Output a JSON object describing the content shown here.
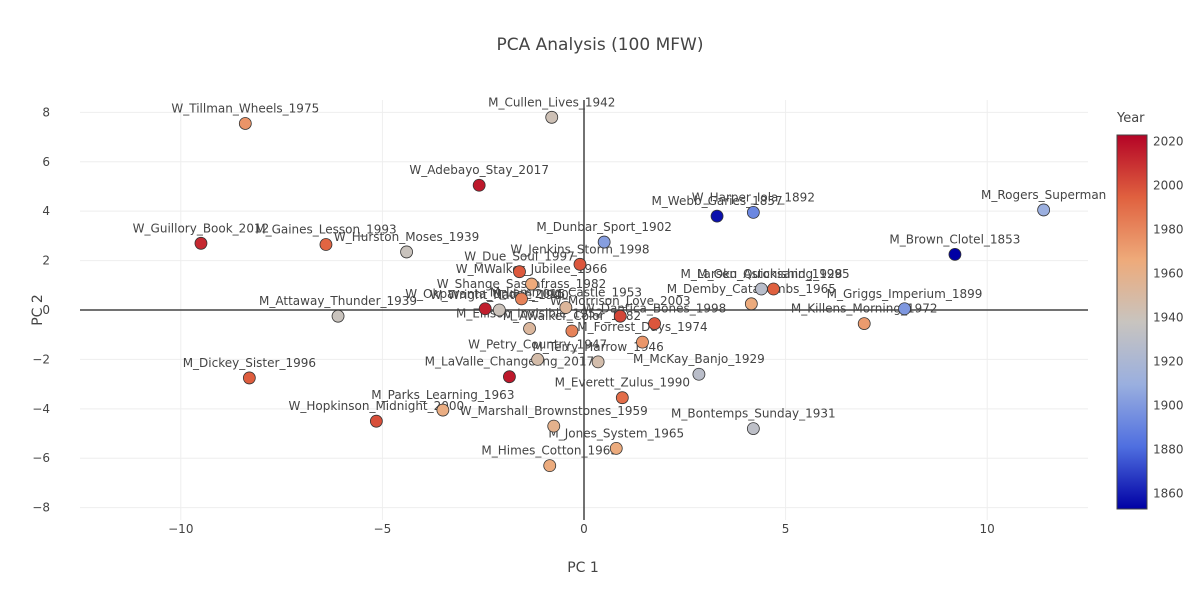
{
  "chart_data": {
    "type": "scatter",
    "title": "PCA Analysis (100 MFW)",
    "xlabel": "PC 1",
    "ylabel": "PC 2",
    "xlim": [
      -12.5,
      12.5
    ],
    "ylim": [
      -8.5,
      8.5
    ],
    "x_ticks": [
      -10,
      -5,
      0,
      5,
      10
    ],
    "x_tick_labels": [
      "−10",
      "−5",
      "0",
      "5",
      "10"
    ],
    "y_ticks": [
      -8,
      -6,
      -4,
      -2,
      0,
      2,
      4,
      6,
      8
    ],
    "y_tick_labels": [
      "−8",
      "−6",
      "−4",
      "−2",
      "0",
      "2",
      "4",
      "6",
      "8"
    ],
    "grid": true,
    "zero_lines": true,
    "colorscale": [
      "#0000a4",
      "#4f6fe0",
      "#9aafdf",
      "#c8c4bf",
      "#eeaa7a",
      "#e0613f",
      "#b40426"
    ],
    "colorbar": {
      "title": "Year",
      "range": [
        1853,
        2023
      ],
      "ticks": [
        1860,
        1880,
        1900,
        1920,
        1940,
        1960,
        1980,
        2000,
        2020
      ],
      "tick_labels": [
        "1860",
        "1880",
        "1900",
        "1920",
        "1940",
        "1960",
        "1980",
        "2000",
        "2020"
      ]
    },
    "points": [
      {
        "label": "W_Tillman_Wheels_1975",
        "x": -8.4,
        "y": 7.55,
        "year": 1975
      },
      {
        "label": "M_Cullen_Lives_1942",
        "x": -0.8,
        "y": 7.8,
        "year": 1942
      },
      {
        "label": "W_Adebayo_Stay_2017",
        "x": -2.6,
        "y": 5.05,
        "year": 2017
      },
      {
        "label": "M_Webb_Garies_1857",
        "x": 3.3,
        "y": 3.8,
        "year": 1857
      },
      {
        "label": "W_Harper_Iola_1892",
        "x": 4.2,
        "y": 3.95,
        "year": 1892
      },
      {
        "label": "M_Rogers_Superman",
        "x": 11.4,
        "y": 4.05,
        "year": 1910
      },
      {
        "label": "W_Guillory_Book_2012",
        "x": -9.5,
        "y": 2.7,
        "year": 2012
      },
      {
        "label": "M_Gaines_Lesson_1993",
        "x": -6.4,
        "y": 2.65,
        "year": 1993
      },
      {
        "label": "W_Hurston_Moses_1939",
        "x": -4.4,
        "y": 2.35,
        "year": 1939
      },
      {
        "label": "M_Dunbar_Sport_1902",
        "x": 0.5,
        "y": 2.75,
        "year": 1902
      },
      {
        "label": "W_Jenkins_Storm_1998",
        "x": -0.1,
        "y": 1.85,
        "year": 1998
      },
      {
        "label": "M_Brown_Clotel_1853",
        "x": 9.2,
        "y": 2.25,
        "year": 1853
      },
      {
        "label": "W_Due_Soul_1997",
        "x": -1.6,
        "y": 1.55,
        "year": 1997
      },
      {
        "label": "W_MWalker_Jubilee_1966",
        "x": -1.3,
        "y": 1.05,
        "year": 1966
      },
      {
        "label": "W_Shange_Sassafrass_1982",
        "x": -1.55,
        "y": 0.45,
        "year": 1982
      },
      {
        "label": "M_Larsen_Quicksand_1928",
        "x": 4.4,
        "y": 0.85,
        "year": 1928
      },
      {
        "label": "M_Oku_Astonishing_1995",
        "x": 4.7,
        "y": 0.85,
        "year": 1995
      },
      {
        "label": "M_Demby_Catacombs_1965",
        "x": 4.15,
        "y": 0.25,
        "year": 1965
      },
      {
        "label": "M_Griggs_Imperium_1899",
        "x": 7.95,
        "y": 0.05,
        "year": 1899
      },
      {
        "label": "M_Killens_Morning_1972",
        "x": 6.95,
        "y": -0.55,
        "year": 1972
      },
      {
        "label": "M_Attaway_Thunder_1939",
        "x": -6.1,
        "y": -0.25,
        "year": 1939
      },
      {
        "label": "W_Okparanta_Under_2015",
        "x": -2.45,
        "y": 0.05,
        "year": 2015
      },
      {
        "label": "W_Wright_Native_1940",
        "x": -2.1,
        "y": 0.0,
        "year": 1940
      },
      {
        "label": "M_Lamming_Castle_1953",
        "x": -0.45,
        "y": 0.1,
        "year": 1953
      },
      {
        "label": "W_Morrison_Love_2003",
        "x": 0.9,
        "y": -0.25,
        "year": 2003
      },
      {
        "label": "W_Dantica_Bones_1998",
        "x": 1.75,
        "y": -0.55,
        "year": 1998
      },
      {
        "label": "M_Ellison_Invisible_1952",
        "x": -1.35,
        "y": -0.75,
        "year": 1952
      },
      {
        "label": "M_AWalker_Color_1982",
        "x": -0.3,
        "y": -0.85,
        "year": 1982
      },
      {
        "label": "M_Forrest_Days_1974",
        "x": 1.45,
        "y": -1.3,
        "year": 1974
      },
      {
        "label": "W_Petry_Country_1947",
        "x": -1.15,
        "y": -2.0,
        "year": 1947
      },
      {
        "label": "M_Terry_Harrow_1946",
        "x": 0.35,
        "y": -2.1,
        "year": 1946
      },
      {
        "label": "M_LaValle_Changeling_2017",
        "x": -1.85,
        "y": -2.7,
        "year": 2017
      },
      {
        "label": "M_McKay_Banjo_1929",
        "x": 2.85,
        "y": -2.6,
        "year": 1929
      },
      {
        "label": "M_Dickey_Sister_1996",
        "x": -8.3,
        "y": -2.75,
        "year": 1996
      },
      {
        "label": "M_Everett_Zulus_1990",
        "x": 0.95,
        "y": -3.55,
        "year": 1990
      },
      {
        "label": "M_Parks_Learning_1963",
        "x": -3.5,
        "y": -4.05,
        "year": 1963
      },
      {
        "label": "W_Hopkinson_Midnight_2000",
        "x": -5.15,
        "y": -4.5,
        "year": 2000
      },
      {
        "label": "W_Marshall_Brownstones_1959",
        "x": -0.75,
        "y": -4.7,
        "year": 1959
      },
      {
        "label": "M_Bontemps_Sunday_1931",
        "x": 4.2,
        "y": -4.8,
        "year": 1931
      },
      {
        "label": "M_Jones_System_1965",
        "x": 0.8,
        "y": -5.6,
        "year": 1965
      },
      {
        "label": "M_Himes_Cotton_1965",
        "x": -0.85,
        "y": -6.3,
        "year": 1965
      }
    ]
  }
}
